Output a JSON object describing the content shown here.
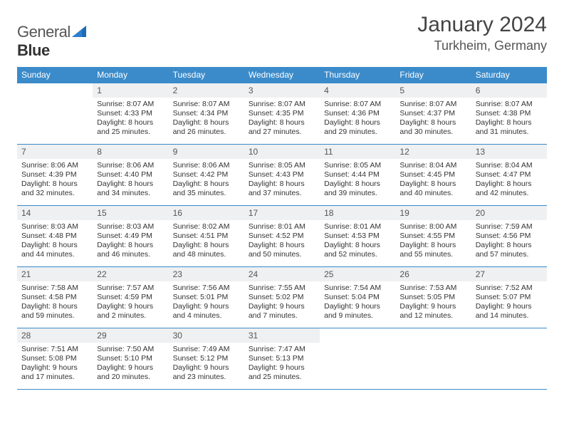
{
  "logo": {
    "part1": "General",
    "part2": "Blue"
  },
  "title": {
    "month": "January 2024",
    "location": "Turkheim, Germany"
  },
  "colors": {
    "header_bg": "#3b8bca",
    "header_text": "#ffffff",
    "daynum_bg": "#eef0f2",
    "cell_border": "#3b8bca",
    "body_text": "#333333",
    "page_bg": "#ffffff"
  },
  "typography": {
    "month_title_size": 30,
    "location_size": 18,
    "dayheader_size": 12,
    "daynum_size": 12,
    "cell_size": 10.5
  },
  "weekdays": [
    "Sunday",
    "Monday",
    "Tuesday",
    "Wednesday",
    "Thursday",
    "Friday",
    "Saturday"
  ],
  "weeks": [
    [
      null,
      {
        "n": "1",
        "sr": "8:07 AM",
        "ss": "4:33 PM",
        "dl": "8 hours and 25 minutes."
      },
      {
        "n": "2",
        "sr": "8:07 AM",
        "ss": "4:34 PM",
        "dl": "8 hours and 26 minutes."
      },
      {
        "n": "3",
        "sr": "8:07 AM",
        "ss": "4:35 PM",
        "dl": "8 hours and 27 minutes."
      },
      {
        "n": "4",
        "sr": "8:07 AM",
        "ss": "4:36 PM",
        "dl": "8 hours and 29 minutes."
      },
      {
        "n": "5",
        "sr": "8:07 AM",
        "ss": "4:37 PM",
        "dl": "8 hours and 30 minutes."
      },
      {
        "n": "6",
        "sr": "8:07 AM",
        "ss": "4:38 PM",
        "dl": "8 hours and 31 minutes."
      }
    ],
    [
      {
        "n": "7",
        "sr": "8:06 AM",
        "ss": "4:39 PM",
        "dl": "8 hours and 32 minutes."
      },
      {
        "n": "8",
        "sr": "8:06 AM",
        "ss": "4:40 PM",
        "dl": "8 hours and 34 minutes."
      },
      {
        "n": "9",
        "sr": "8:06 AM",
        "ss": "4:42 PM",
        "dl": "8 hours and 35 minutes."
      },
      {
        "n": "10",
        "sr": "8:05 AM",
        "ss": "4:43 PM",
        "dl": "8 hours and 37 minutes."
      },
      {
        "n": "11",
        "sr": "8:05 AM",
        "ss": "4:44 PM",
        "dl": "8 hours and 39 minutes."
      },
      {
        "n": "12",
        "sr": "8:04 AM",
        "ss": "4:45 PM",
        "dl": "8 hours and 40 minutes."
      },
      {
        "n": "13",
        "sr": "8:04 AM",
        "ss": "4:47 PM",
        "dl": "8 hours and 42 minutes."
      }
    ],
    [
      {
        "n": "14",
        "sr": "8:03 AM",
        "ss": "4:48 PM",
        "dl": "8 hours and 44 minutes."
      },
      {
        "n": "15",
        "sr": "8:03 AM",
        "ss": "4:49 PM",
        "dl": "8 hours and 46 minutes."
      },
      {
        "n": "16",
        "sr": "8:02 AM",
        "ss": "4:51 PM",
        "dl": "8 hours and 48 minutes."
      },
      {
        "n": "17",
        "sr": "8:01 AM",
        "ss": "4:52 PM",
        "dl": "8 hours and 50 minutes."
      },
      {
        "n": "18",
        "sr": "8:01 AM",
        "ss": "4:53 PM",
        "dl": "8 hours and 52 minutes."
      },
      {
        "n": "19",
        "sr": "8:00 AM",
        "ss": "4:55 PM",
        "dl": "8 hours and 55 minutes."
      },
      {
        "n": "20",
        "sr": "7:59 AM",
        "ss": "4:56 PM",
        "dl": "8 hours and 57 minutes."
      }
    ],
    [
      {
        "n": "21",
        "sr": "7:58 AM",
        "ss": "4:58 PM",
        "dl": "8 hours and 59 minutes."
      },
      {
        "n": "22",
        "sr": "7:57 AM",
        "ss": "4:59 PM",
        "dl": "9 hours and 2 minutes."
      },
      {
        "n": "23",
        "sr": "7:56 AM",
        "ss": "5:01 PM",
        "dl": "9 hours and 4 minutes."
      },
      {
        "n": "24",
        "sr": "7:55 AM",
        "ss": "5:02 PM",
        "dl": "9 hours and 7 minutes."
      },
      {
        "n": "25",
        "sr": "7:54 AM",
        "ss": "5:04 PM",
        "dl": "9 hours and 9 minutes."
      },
      {
        "n": "26",
        "sr": "7:53 AM",
        "ss": "5:05 PM",
        "dl": "9 hours and 12 minutes."
      },
      {
        "n": "27",
        "sr": "7:52 AM",
        "ss": "5:07 PM",
        "dl": "9 hours and 14 minutes."
      }
    ],
    [
      {
        "n": "28",
        "sr": "7:51 AM",
        "ss": "5:08 PM",
        "dl": "9 hours and 17 minutes."
      },
      {
        "n": "29",
        "sr": "7:50 AM",
        "ss": "5:10 PM",
        "dl": "9 hours and 20 minutes."
      },
      {
        "n": "30",
        "sr": "7:49 AM",
        "ss": "5:12 PM",
        "dl": "9 hours and 23 minutes."
      },
      {
        "n": "31",
        "sr": "7:47 AM",
        "ss": "5:13 PM",
        "dl": "9 hours and 25 minutes."
      },
      null,
      null,
      null
    ]
  ]
}
